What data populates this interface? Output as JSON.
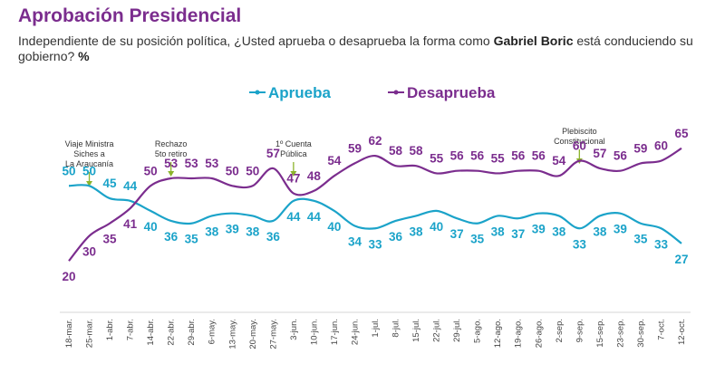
{
  "header": {
    "title": "Aprobación Presidencial",
    "subtitle_pre": "Independiente de su posición política, ¿Usted aprueba o desaprueba la forma como ",
    "subtitle_bold": "Gabriel Boric",
    "subtitle_post": " está conduciendo su gobierno?",
    "subtitle_pct": "%"
  },
  "colors": {
    "aprueba": "#1BA3C9",
    "desaprueba": "#7B2D8E"
  },
  "chart_data": {
    "type": "line",
    "x": [
      "18-mar.",
      "25-mar.",
      "1-abr.",
      "7-abr.",
      "14-abr.",
      "22-abr.",
      "29-abr.",
      "6-may.",
      "13-may.",
      "20-may.",
      "27-may.",
      "3-jun.",
      "10-jun.",
      "17-jun.",
      "24-jun.",
      "1-jul.",
      "8-jul.",
      "15-jul.",
      "22-jul.",
      "29-jul.",
      "5-ago.",
      "12-ago.",
      "19-ago.",
      "26-ago.",
      "2-sep.",
      "9-sep.",
      "15-sep.",
      "23-sep.",
      "30-sep.",
      "7-oct.",
      "12-oct."
    ],
    "series": [
      {
        "name": "Aprueba",
        "values": [
          50,
          50,
          45,
          44,
          40,
          36,
          35,
          38,
          39,
          38,
          36,
          44,
          44,
          40,
          34,
          33,
          36,
          38,
          40,
          37,
          35,
          38,
          37,
          39,
          38,
          33,
          38,
          39,
          35,
          33,
          27
        ]
      },
      {
        "name": "Desaprueba",
        "values": [
          20,
          30,
          35,
          41,
          50,
          53,
          53,
          53,
          50,
          50,
          57,
          47,
          48,
          54,
          59,
          62,
          58,
          58,
          55,
          56,
          56,
          55,
          56,
          56,
          54,
          60,
          57,
          56,
          59,
          60,
          65
        ]
      }
    ],
    "ylim": [
      15,
      70
    ],
    "annotations": [
      {
        "x": "25-mar.",
        "text": "Viaje Ministra Siches a La Araucanía"
      },
      {
        "x": "22-abr.",
        "text": "Rechazo 5to retiro"
      },
      {
        "x": "3-jun.",
        "text": "1º Cuenta Pública"
      },
      {
        "x": "9-sep.",
        "text": "Plebiscito Constitucional"
      }
    ]
  }
}
